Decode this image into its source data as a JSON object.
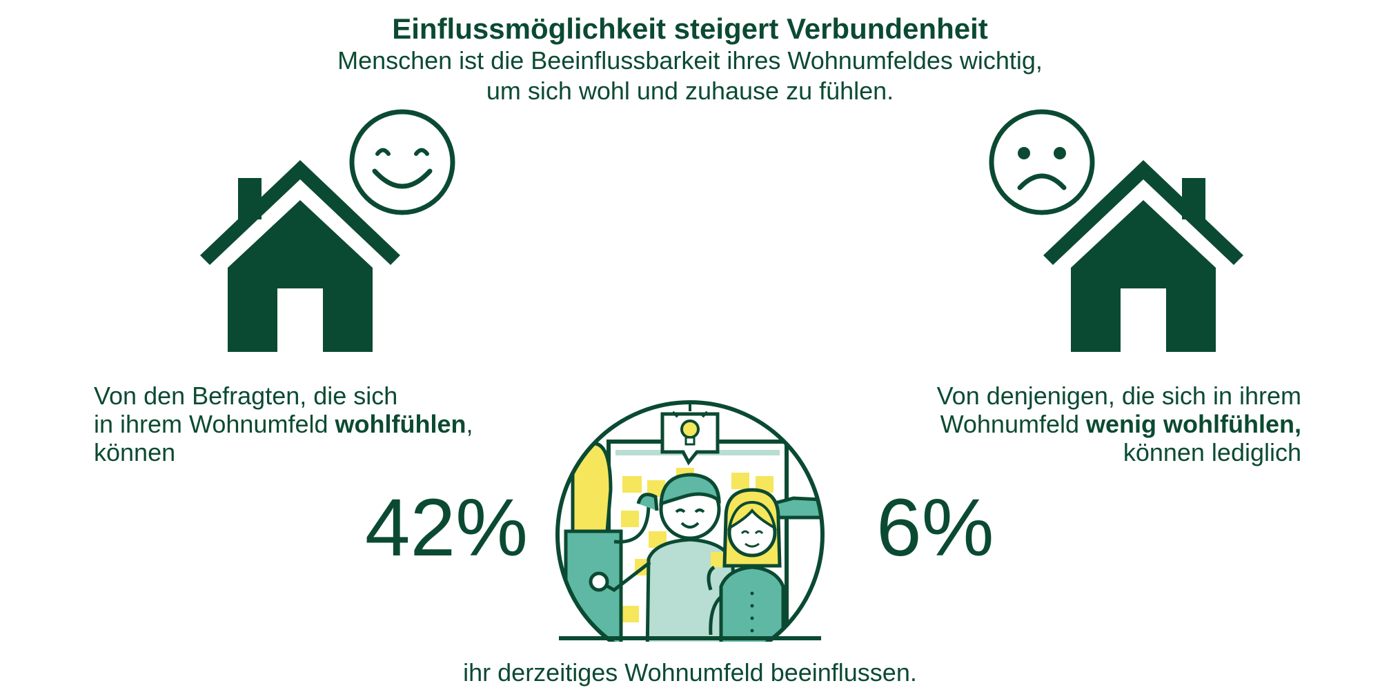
{
  "header": {
    "title": "Einflussmöglichkeit steigert Verbundenheit",
    "subtitle_line1": "Menschen ist die Beeinflussbarkeit ihres Wohnumfeldes wichtig,",
    "subtitle_line2": "um sich wohl und zuhause zu fühlen."
  },
  "left": {
    "line1": "Von den Befragten, die sich",
    "line2_pre": "in ihrem Wohnumfeld ",
    "line2_bold": "wohlfühlen",
    "line2_post": ",",
    "line3": "können",
    "percent": "42%",
    "icon": "happy-house"
  },
  "right": {
    "line1": "Von denjenigen, die sich in ihrem",
    "line2_pre": "Wohnumfeld ",
    "line2_bold": "wenig wohlfühlen,",
    "line3": "können lediglich",
    "percent": "6%",
    "icon": "sad-house"
  },
  "footer": {
    "text": "ihr derzeitiges Wohnumfeld beeinflussen."
  },
  "colors": {
    "dark_green": "#0b4a32",
    "teal": "#5fb8a3",
    "light_teal": "#b8ddd3",
    "yellow": "#f5e65c"
  }
}
